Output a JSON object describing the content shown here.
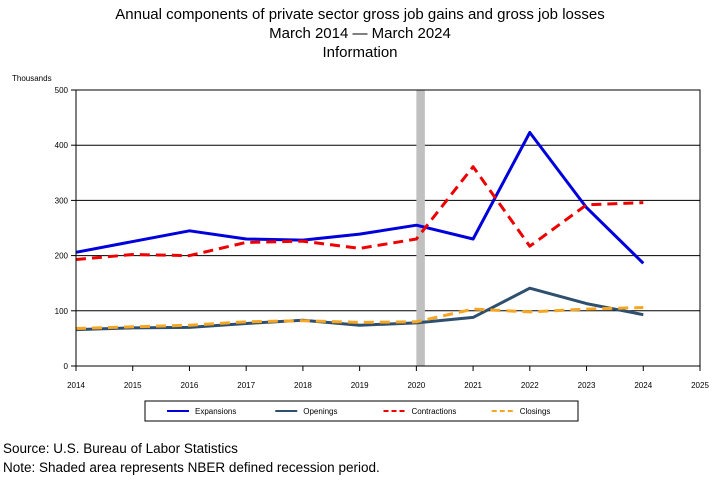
{
  "chart_data": {
    "type": "line",
    "title_lines": [
      "Annual components of private sector gross job gains and gross job losses",
      "March 2014 — March 2024",
      "Information"
    ],
    "ylabel": "Thousands",
    "xlabel": "",
    "xlim": [
      2014,
      2025
    ],
    "ylim": [
      0,
      500
    ],
    "x_ticks": [
      2014,
      2015,
      2016,
      2017,
      2018,
      2019,
      2020,
      2021,
      2022,
      2023,
      2024,
      2025
    ],
    "y_ticks": [
      0,
      100,
      200,
      300,
      400,
      500
    ],
    "grid": "horizontal",
    "recession": {
      "start": 2020,
      "end": 2020.15
    },
    "legend_position": "bottom",
    "series": [
      {
        "name": "Expansions",
        "color": "#0000dd",
        "dash": "solid",
        "x": [
          2014,
          2016,
          2017,
          2018,
          2019,
          2020,
          2021,
          2022,
          2023,
          2024
        ],
        "values": [
          206,
          245,
          230,
          228,
          239,
          255,
          230,
          423,
          287,
          186
        ]
      },
      {
        "name": "Openings",
        "color": "#2f4f6f",
        "dash": "solid",
        "x": [
          2014,
          2015,
          2016,
          2017,
          2018,
          2019,
          2020,
          2021,
          2022,
          2023,
          2024
        ],
        "values": [
          66,
          69,
          70,
          77,
          83,
          74,
          78,
          88,
          141,
          113,
          93
        ]
      },
      {
        "name": "Contractions",
        "color": "#ee0000",
        "dash": "dashed",
        "x": [
          2014,
          2015,
          2016,
          2017,
          2018,
          2019,
          2020,
          2021,
          2022,
          2023,
          2024
        ],
        "values": [
          193,
          202,
          200,
          224,
          226,
          213,
          230,
          361,
          217,
          292,
          296
        ]
      },
      {
        "name": "Closings",
        "color": "#f5a623",
        "dash": "dashed",
        "x": [
          2014,
          2015,
          2016,
          2017,
          2018,
          2019,
          2020,
          2021,
          2022,
          2023,
          2024
        ],
        "values": [
          68,
          71,
          74,
          80,
          82,
          79,
          80,
          103,
          98,
          103,
          106
        ]
      }
    ]
  },
  "footer": {
    "source": "Source: U.S. Bureau of Labor Statistics",
    "note": "Note: Shaded area represents NBER defined recession period."
  }
}
